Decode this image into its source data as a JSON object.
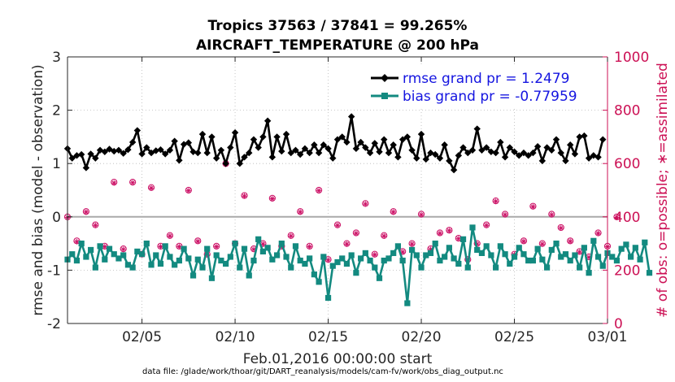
{
  "chart_data": {
    "type": "line",
    "title_line1": "Tropics 37563 / 37841 = 99.265%",
    "title_line2": "AIRCRAFT_TEMPERATURE @ 200 hPa",
    "ylabel_left": "rmse and bias (model - observation)",
    "ylabel_right": "# of obs: o=possible; ∗=assimilated",
    "xlabel": "Feb.01,2016 00:00:00 start",
    "footnote": "data file: /glade/work/thoar/git/DART_reanalysis/models/cam-fv/work/obs_diag_output.nc",
    "x_range": [
      0,
      29
    ],
    "ylim_left": [
      -2,
      3
    ],
    "ylim_right": [
      0,
      1000
    ],
    "x_ticks": [
      {
        "x": 4,
        "label": "02/05"
      },
      {
        "x": 9,
        "label": "02/10"
      },
      {
        "x": 14,
        "label": "02/15"
      },
      {
        "x": 19,
        "label": "02/20"
      },
      {
        "x": 24,
        "label": "02/25"
      },
      {
        "x": 29,
        "label": "03/01"
      }
    ],
    "y_ticks_left": [
      "-2",
      "-1",
      "0",
      "1",
      "2",
      "3"
    ],
    "y_ticks_right": [
      "0",
      "200",
      "400",
      "600",
      "800",
      "1000"
    ],
    "grid": true,
    "legend_position": "top-right",
    "series": [
      {
        "name": "rmse grand pr = 1.2479",
        "color": "#000000",
        "marker": "diamond",
        "axis": "left",
        "x_start": 0,
        "x_step": 0.25,
        "values": [
          1.28,
          1.1,
          1.15,
          1.17,
          0.92,
          1.18,
          1.1,
          1.25,
          1.22,
          1.27,
          1.23,
          1.25,
          1.19,
          1.26,
          1.4,
          1.62,
          1.18,
          1.3,
          1.2,
          1.24,
          1.26,
          1.18,
          1.25,
          1.42,
          1.06,
          1.36,
          1.39,
          1.22,
          1.2,
          1.55,
          1.2,
          1.5,
          1.1,
          1.25,
          1.0,
          1.3,
          1.58,
          1.0,
          1.12,
          1.2,
          1.45,
          1.3,
          1.5,
          1.8,
          1.12,
          1.5,
          1.23,
          1.55,
          1.2,
          1.25,
          1.17,
          1.28,
          1.2,
          1.35,
          1.2,
          1.35,
          1.28,
          1.1,
          1.45,
          1.5,
          1.4,
          1.88,
          1.28,
          1.4,
          1.3,
          1.2,
          1.38,
          1.22,
          1.45,
          1.2,
          1.35,
          1.12,
          1.45,
          1.5,
          1.25,
          1.1,
          1.55,
          1.08,
          1.2,
          1.17,
          1.1,
          1.35,
          1.05,
          0.88,
          1.15,
          1.3,
          1.2,
          1.25,
          1.65,
          1.25,
          1.3,
          1.22,
          1.2,
          1.4,
          1.12,
          1.3,
          1.22,
          1.15,
          1.2,
          1.15,
          1.2,
          1.32,
          1.05,
          1.3,
          1.25,
          1.45,
          1.2,
          1.05,
          1.35,
          1.18,
          1.5,
          1.52,
          1.1,
          1.15,
          1.12,
          1.45
        ]
      },
      {
        "name": "bias grand pr = -0.77959",
        "color": "#138a80",
        "marker": "square",
        "axis": "left",
        "x_start": 0,
        "x_step": 0.25,
        "values": [
          -0.8,
          -0.7,
          -0.82,
          -0.5,
          -0.75,
          -0.62,
          -0.95,
          -0.55,
          -0.8,
          -0.6,
          -0.7,
          -0.78,
          -0.72,
          -0.9,
          -0.95,
          -0.65,
          -0.7,
          -0.5,
          -0.9,
          -0.72,
          -0.88,
          -0.55,
          -0.75,
          -0.9,
          -0.82,
          -0.6,
          -0.78,
          -1.1,
          -0.8,
          -0.95,
          -0.6,
          -1.15,
          -0.72,
          -0.82,
          -0.88,
          -0.75,
          -0.5,
          -0.95,
          -0.6,
          -1.1,
          -0.82,
          -0.42,
          -0.65,
          -0.58,
          -0.8,
          -0.72,
          -0.5,
          -0.75,
          -0.95,
          -0.55,
          -0.82,
          -0.88,
          -0.78,
          -1.08,
          -1.22,
          -0.75,
          -1.52,
          -0.92,
          -0.85,
          -0.78,
          -0.88,
          -0.72,
          -1.05,
          -0.78,
          -0.68,
          -0.82,
          -0.95,
          -1.15,
          -0.82,
          -0.78,
          -0.68,
          -0.55,
          -0.82,
          -1.62,
          -0.62,
          -0.72,
          -0.95,
          -0.72,
          -0.68,
          -0.5,
          -0.82,
          -0.75,
          -0.58,
          -0.78,
          -0.88,
          -0.42,
          -0.95,
          -0.2,
          -0.62,
          -0.68,
          -0.55,
          -0.72,
          -0.95,
          -0.55,
          -0.7,
          -0.88,
          -0.75,
          -0.58,
          -0.7,
          -0.82,
          -0.82,
          -0.6,
          -0.8,
          -0.95,
          -0.62,
          -0.5,
          -0.75,
          -0.7,
          -0.82,
          -0.72,
          -0.95,
          -0.58,
          -1.05,
          -0.45,
          -0.75,
          -0.92,
          -0.68,
          -0.75,
          -0.82,
          -0.6,
          -0.52,
          -0.75,
          -0.58,
          -0.8,
          -0.48,
          -1.05
        ]
      },
      {
        "name": "possible",
        "color": "#cc1166",
        "marker": "circle",
        "axis": "right",
        "x_start": 0,
        "x_step": 0.5,
        "values": [
          400,
          310,
          420,
          370,
          290,
          530,
          280,
          530,
          260,
          510,
          290,
          330,
          290,
          500,
          310,
          260,
          290,
          600,
          300,
          480,
          280,
          300,
          470,
          290,
          330,
          420,
          290,
          500,
          240,
          370,
          300,
          340,
          450,
          260,
          330,
          420,
          270,
          300,
          410,
          280,
          340,
          350,
          320,
          240,
          300,
          370,
          460,
          410,
          260,
          310,
          440,
          300,
          410,
          360,
          310,
          270,
          250,
          340,
          290,
          400
        ]
      },
      {
        "name": "assimilated",
        "color": "#cc1166",
        "marker": "asterisk",
        "axis": "right",
        "x_start": 0,
        "x_step": 0.5,
        "values": [
          398,
          307,
          418,
          368,
          288,
          527,
          278,
          528,
          258,
          508,
          288,
          328,
          288,
          498,
          308,
          258,
          288,
          597,
          298,
          478,
          278,
          298,
          468,
          288,
          328,
          418,
          288,
          498,
          238,
          368,
          298,
          338,
          448,
          258,
          328,
          418,
          268,
          298,
          408,
          278,
          338,
          348,
          318,
          238,
          298,
          368,
          458,
          408,
          258,
          308,
          438,
          298,
          408,
          358,
          308,
          268,
          248,
          338,
          288,
          398
        ]
      }
    ]
  }
}
